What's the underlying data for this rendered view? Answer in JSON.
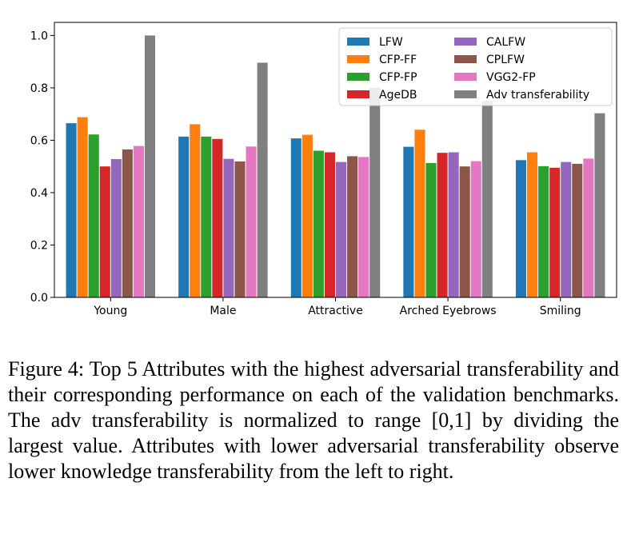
{
  "chart_data": {
    "type": "bar",
    "categories": [
      "Young",
      "Male",
      "Attractive",
      "Arched Eyebrows",
      "Smiling"
    ],
    "series": [
      {
        "name": "LFW",
        "color": "#1f77b4",
        "values": [
          0.665,
          0.614,
          0.607,
          0.575,
          0.524
        ]
      },
      {
        "name": "CFP-FF",
        "color": "#ff7f0e",
        "values": [
          0.688,
          0.661,
          0.621,
          0.64,
          0.554
        ]
      },
      {
        "name": "CFP-FP",
        "color": "#2ca02c",
        "values": [
          0.622,
          0.614,
          0.56,
          0.513,
          0.501
        ]
      },
      {
        "name": "AgeDB",
        "color": "#d62728",
        "values": [
          0.5,
          0.605,
          0.554,
          0.552,
          0.495
        ]
      },
      {
        "name": "CALFW",
        "color": "#9467bd",
        "values": [
          0.528,
          0.529,
          0.517,
          0.554,
          0.517
        ]
      },
      {
        "name": "CPLFW",
        "color": "#8c564b",
        "values": [
          0.565,
          0.519,
          0.539,
          0.5,
          0.51
        ]
      },
      {
        "name": "VGG2-FP",
        "color": "#e377c2",
        "values": [
          0.578,
          0.576,
          0.536,
          0.52,
          0.53
        ]
      },
      {
        "name": "Adv transferability",
        "color": "#7f7f7f",
        "values": [
          1.0,
          0.896,
          0.8,
          0.75,
          0.703
        ]
      }
    ],
    "ylim": [
      0.0,
      1.05
    ],
    "yticks": [
      "0.0",
      "0.2",
      "0.4",
      "0.6",
      "0.8",
      "1.0"
    ],
    "legend_position": "top-right",
    "legend_columns": 2
  },
  "caption": "Figure 4: Top 5 Attributes with the highest adversarial transferability and their corresponding performance on each of the validation benchmarks. The adv transferability is normalized to range [0,1] by dividing the largest value. Attributes with lower adversarial transferability observe lower knowledge transferability from the left to right."
}
